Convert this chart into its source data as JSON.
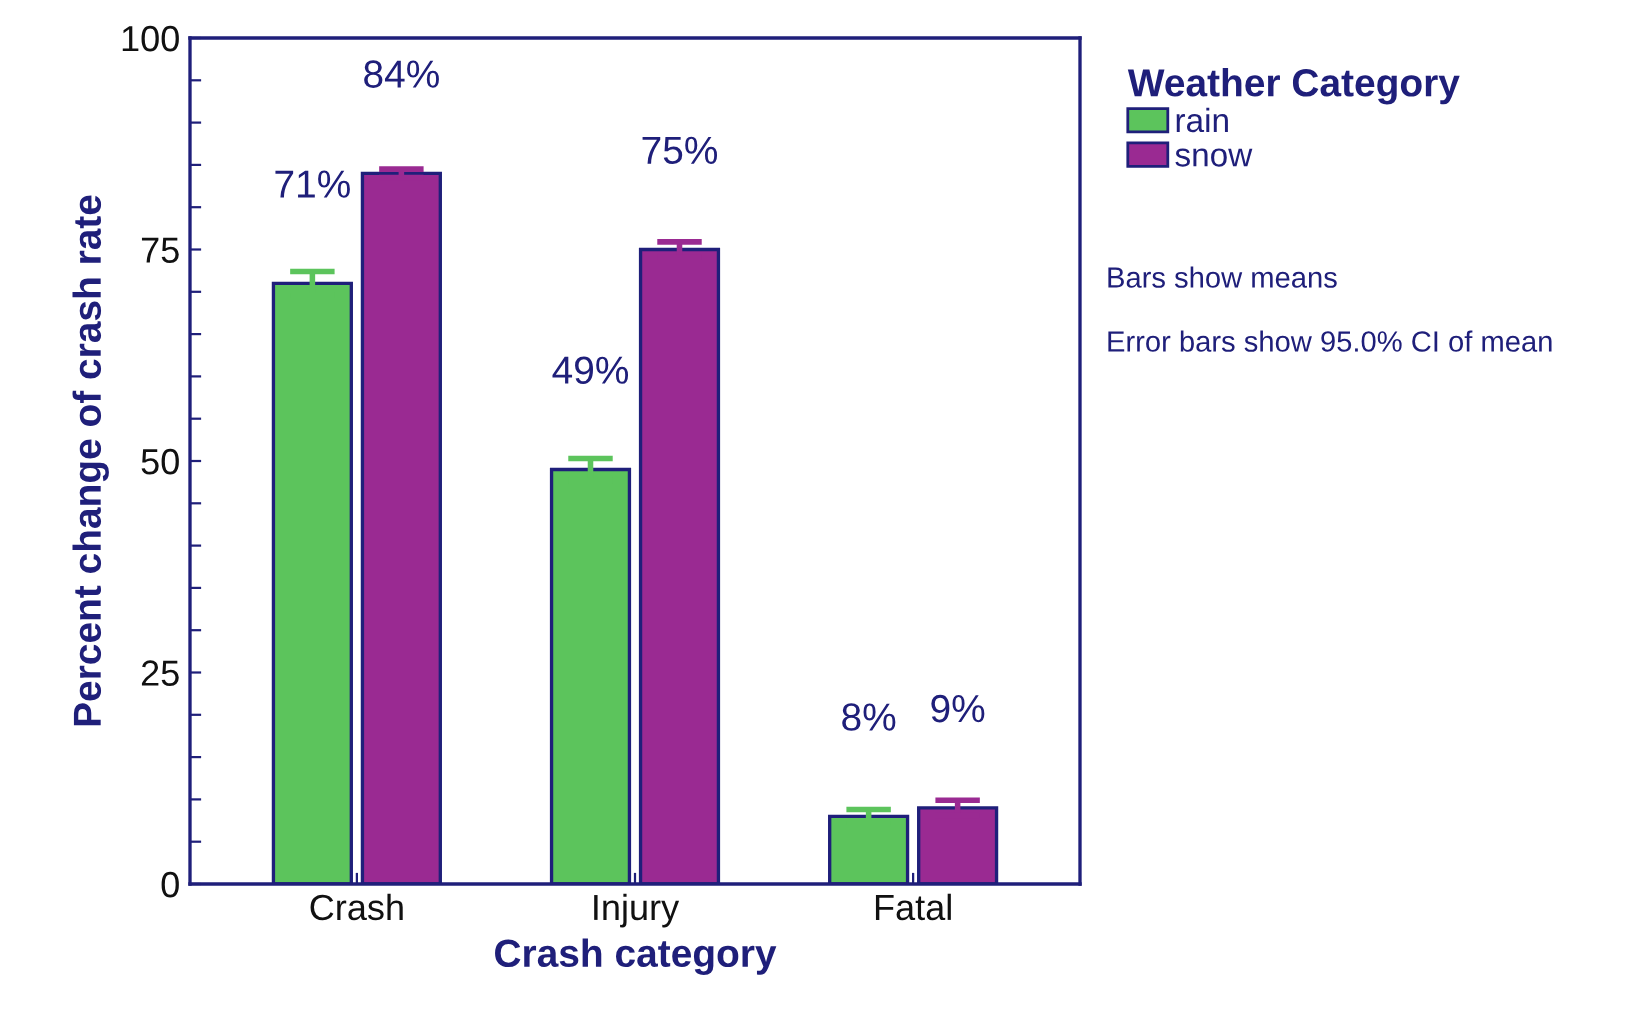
{
  "chart_data": {
    "type": "bar",
    "xlabel": "Crash category",
    "ylabel": "Percent change of crash rate",
    "legend_title": "Weather Category",
    "categories": [
      "Crash",
      "Injury",
      "Fatal"
    ],
    "series": [
      {
        "name": "rain",
        "color": "#5cc45c",
        "values": [
          71,
          49,
          8
        ],
        "errors": [
          1.4,
          1.3,
          0.8
        ],
        "value_labels": [
          "71%",
          "49%",
          "8%"
        ]
      },
      {
        "name": "snow",
        "color": "#9a2a92",
        "values": [
          84,
          75,
          9
        ],
        "errors": [
          0.5,
          0.9,
          0.9
        ],
        "value_labels": [
          "84%",
          "75%",
          "9%"
        ]
      }
    ],
    "ylim": [
      0,
      100
    ],
    "yticks": [
      0,
      {
        "value": 5,
        "label": null
      },
      {
        "value": 10,
        "label": null
      },
      {
        "value": 15,
        "label": null
      },
      {
        "value": 20,
        "label": null
      },
      25,
      {
        "value": 30,
        "label": null
      },
      {
        "value": 35,
        "label": null
      },
      {
        "value": 40,
        "label": null
      },
      {
        "value": 45,
        "label": null
      },
      50,
      {
        "value": 55,
        "label": null
      },
      {
        "value": 60,
        "label": null
      },
      {
        "value": 65,
        "label": null
      },
      {
        "value": 70,
        "label": null
      },
      75,
      {
        "value": 80,
        "label": null
      },
      {
        "value": 85,
        "label": null
      },
      {
        "value": 90,
        "label": null
      },
      {
        "value": 95,
        "label": null
      },
      100
    ],
    "grid": false,
    "legend": "right",
    "annotations": [
      "Bars show means",
      "Error bars show 95.0% CI of mean"
    ]
  }
}
